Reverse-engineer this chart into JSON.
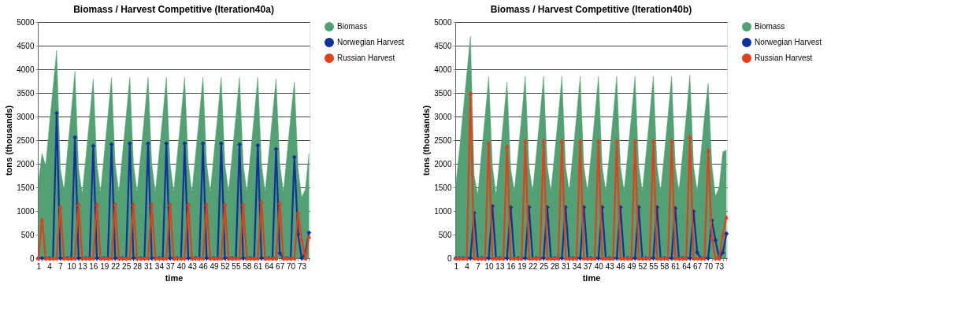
{
  "chart_data": [
    {
      "type": "line",
      "title": "Biomass / Harvest Competitive (Iteration40a)",
      "xlabel": "time",
      "ylabel": "tons (thousands)",
      "categories": [
        "1",
        null,
        null,
        "4",
        null,
        null,
        "7",
        null,
        null,
        "10",
        null,
        null,
        "13",
        null,
        null,
        "16",
        null,
        null,
        "19",
        null,
        null,
        "22",
        null,
        null,
        "25",
        null,
        null,
        "28",
        null,
        null,
        "31",
        null,
        null,
        "34",
        null,
        null,
        "37",
        null,
        null,
        "40",
        null,
        null,
        "43",
        null,
        null,
        "46",
        null,
        null,
        "49",
        null,
        null,
        "52",
        null,
        null,
        "55",
        null,
        null,
        "58",
        null,
        null,
        "61",
        null,
        null,
        "64",
        null,
        null,
        "67",
        null,
        null,
        "70",
        null,
        null,
        "73",
        null,
        null
      ],
      "series": [
        {
          "name": "Biomass",
          "type": "area",
          "color": "#52a074",
          "values": [
            1590,
            2220,
            1960,
            2800,
            3600,
            4400,
            1900,
            1440,
            2300,
            3100,
            3960,
            1900,
            1370,
            2150,
            2950,
            3790,
            2000,
            1400,
            2200,
            3000,
            3820,
            2000,
            1400,
            2200,
            3000,
            3830,
            2000,
            1400,
            2200,
            3000,
            3830,
            2000,
            1400,
            2200,
            3000,
            3830,
            2000,
            1400,
            2200,
            3000,
            3830,
            2000,
            1400,
            2200,
            3000,
            3830,
            2000,
            1400,
            2200,
            3000,
            3830,
            2000,
            1400,
            2200,
            3000,
            3830,
            2000,
            1400,
            2200,
            3000,
            3830,
            2000,
            1400,
            2200,
            3000,
            3800,
            2000,
            1400,
            2200,
            3000,
            3740,
            1900,
            1290,
            1460,
            2230
          ]
        },
        {
          "name": "Norwegian Harvest",
          "marker": "diamond",
          "color": "#12329a",
          "values": [
            0,
            0,
            0,
            0,
            0,
            3070,
            0,
            0,
            0,
            0,
            2560,
            0,
            0,
            0,
            0,
            2380,
            0,
            0,
            0,
            0,
            2410,
            0,
            0,
            0,
            0,
            2430,
            0,
            0,
            0,
            0,
            2430,
            0,
            0,
            0,
            0,
            2430,
            0,
            0,
            0,
            0,
            2430,
            0,
            0,
            0,
            0,
            2430,
            0,
            0,
            0,
            0,
            2430,
            0,
            0,
            0,
            0,
            2410,
            0,
            0,
            0,
            0,
            2390,
            0,
            0,
            0,
            0,
            2310,
            110,
            0,
            0,
            0,
            2140,
            510,
            0,
            100,
            540
          ]
        },
        {
          "name": "Russian Harvest",
          "marker": "triangle",
          "color": "#e0401c",
          "values": [
            0,
            830,
            0,
            0,
            0,
            0,
            1100,
            0,
            0,
            0,
            0,
            1150,
            0,
            0,
            0,
            0,
            1150,
            0,
            0,
            0,
            0,
            1150,
            0,
            0,
            0,
            0,
            1150,
            0,
            0,
            0,
            0,
            1150,
            0,
            0,
            0,
            0,
            1150,
            0,
            0,
            0,
            0,
            1150,
            0,
            0,
            0,
            0,
            1150,
            0,
            0,
            0,
            0,
            1150,
            0,
            0,
            0,
            0,
            1150,
            0,
            0,
            0,
            0,
            1200,
            0,
            0,
            0,
            0,
            1180,
            0,
            0,
            0,
            0,
            970,
            400,
            0,
            460
          ]
        }
      ],
      "ylim": [
        0,
        5000
      ],
      "yticks": [
        0,
        500,
        1000,
        1500,
        2000,
        2500,
        3000,
        3500,
        4000,
        4500,
        5000
      ],
      "grid": "y",
      "legend": "right"
    },
    {
      "type": "line",
      "title": "Biomass / Harvest Competitive (Iteration40b)",
      "xlabel": "time",
      "ylabel": "tons (thousands)",
      "categories": [
        "1",
        null,
        null,
        "4",
        null,
        null,
        "7",
        null,
        null,
        "10",
        null,
        null,
        "13",
        null,
        null,
        "16",
        null,
        null,
        "19",
        null,
        null,
        "22",
        null,
        null,
        "25",
        null,
        null,
        "28",
        null,
        null,
        "31",
        null,
        null,
        "34",
        null,
        null,
        "37",
        null,
        null,
        "40",
        null,
        null,
        "43",
        null,
        null,
        "46",
        null,
        null,
        "49",
        null,
        null,
        "52",
        null,
        null,
        "55",
        null,
        null,
        "58",
        null,
        null,
        "61",
        null,
        null,
        "64",
        null,
        null,
        "67",
        null,
        null,
        "70",
        null,
        null,
        "73",
        null,
        null
      ],
      "series": [
        {
          "name": "Biomass",
          "type": "area",
          "color": "#52a074",
          "values": [
            1560,
            2300,
            3100,
            3900,
            4700,
            1750,
            1340,
            2200,
            3000,
            3840,
            1950,
            1340,
            2100,
            2900,
            3730,
            1900,
            1420,
            2200,
            3000,
            3850,
            1950,
            1420,
            2200,
            3000,
            3850,
            1950,
            1420,
            2200,
            3000,
            3850,
            1950,
            1420,
            2200,
            3000,
            3850,
            1950,
            1420,
            2200,
            3000,
            3850,
            1950,
            1420,
            2200,
            3000,
            3850,
            1950,
            1420,
            2200,
            3000,
            3850,
            1950,
            1420,
            2200,
            3000,
            3850,
            1950,
            1420,
            2200,
            3000,
            3850,
            1950,
            1420,
            2200,
            3000,
            3880,
            1950,
            1420,
            2200,
            3000,
            3700,
            1980,
            1310,
            1510,
            2250,
            2290
          ]
        },
        {
          "name": "Norwegian Harvest",
          "marker": "diamond",
          "color": "#12329a",
          "values": [
            0,
            0,
            0,
            0,
            0,
            960,
            0,
            0,
            0,
            0,
            1100,
            0,
            0,
            0,
            0,
            1080,
            0,
            0,
            0,
            0,
            1080,
            0,
            0,
            0,
            0,
            1080,
            0,
            0,
            0,
            0,
            1080,
            0,
            0,
            0,
            0,
            1080,
            0,
            0,
            0,
            0,
            1080,
            0,
            0,
            0,
            0,
            1080,
            0,
            0,
            0,
            0,
            1080,
            0,
            0,
            0,
            0,
            1080,
            0,
            0,
            0,
            0,
            1060,
            0,
            0,
            0,
            0,
            990,
            120,
            0,
            0,
            0,
            800,
            380,
            0,
            120,
            520
          ]
        },
        {
          "name": "Russian Harvest",
          "marker": "triangle",
          "color": "#e0401c",
          "values": [
            0,
            0,
            0,
            0,
            3500,
            0,
            0,
            0,
            0,
            2450,
            0,
            0,
            0,
            0,
            2380,
            0,
            0,
            0,
            0,
            2490,
            0,
            0,
            0,
            0,
            2490,
            0,
            0,
            0,
            0,
            2490,
            0,
            0,
            0,
            0,
            2490,
            0,
            0,
            0,
            0,
            2490,
            0,
            0,
            0,
            0,
            2490,
            0,
            0,
            0,
            0,
            2490,
            0,
            0,
            0,
            0,
            2490,
            0,
            0,
            0,
            0,
            2490,
            0,
            0,
            0,
            0,
            2580,
            0,
            0,
            0,
            0,
            2290,
            440,
            0,
            0,
            500,
            870
          ]
        }
      ],
      "ylim": [
        0,
        5000
      ],
      "yticks": [
        0,
        500,
        1000,
        1500,
        2000,
        2500,
        3000,
        3500,
        4000,
        4500,
        5000
      ],
      "grid": "y",
      "legend": "right"
    }
  ]
}
